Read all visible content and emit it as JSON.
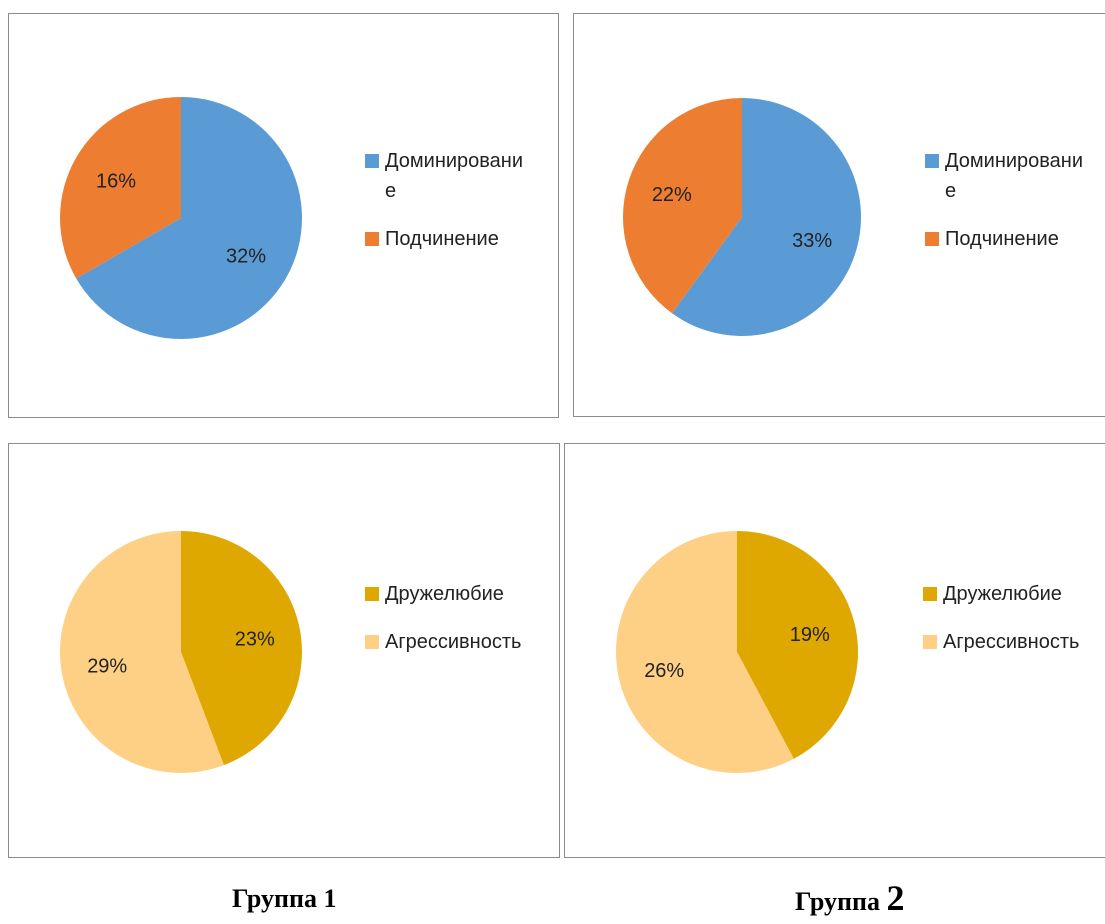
{
  "charts": [
    {
      "legend": [
        {
          "label": "Доминирование",
          "color": "#5b9bd5"
        },
        {
          "label": "Подчинение",
          "color": "#ed7d31"
        }
      ]
    },
    {
      "legend": [
        {
          "label": "Доминирование",
          "color": "#5b9bd5"
        },
        {
          "label": "Подчинение",
          "color": "#ed7d31"
        }
      ]
    },
    {
      "legend": [
        {
          "label": "Дружелюбие",
          "color": "#dfa800"
        },
        {
          "label": "Агрессивность",
          "color": "#fdd086"
        }
      ]
    },
    {
      "legend": [
        {
          "label": "Дружелюбие",
          "color": "#dfa800"
        },
        {
          "label": "Агрессивность",
          "color": "#fdd086"
        }
      ]
    }
  ],
  "chart_data": [
    {
      "type": "pie",
      "categories": [
        "Доминирование",
        "Подчинение"
      ],
      "values": [
        32,
        16
      ],
      "data_labels": [
        "32%",
        "16%"
      ],
      "colors": [
        "#5b9bd5",
        "#ed7d31"
      ],
      "legend_position": "right"
    },
    {
      "type": "pie",
      "categories": [
        "Доминирование",
        "Подчинение"
      ],
      "values": [
        33,
        22
      ],
      "data_labels": [
        "33%",
        "22%"
      ],
      "colors": [
        "#5b9bd5",
        "#ed7d31"
      ],
      "legend_position": "right"
    },
    {
      "type": "pie",
      "categories": [
        "Дружелюбие",
        "Агрессивность"
      ],
      "values": [
        23,
        29
      ],
      "data_labels": [
        "23%",
        "29%"
      ],
      "colors": [
        "#dfa800",
        "#fdd086"
      ],
      "legend_position": "right"
    },
    {
      "type": "pie",
      "categories": [
        "Дружелюбие",
        "Агрессивность"
      ],
      "values": [
        19,
        26
      ],
      "data_labels": [
        "19%",
        "26%"
      ],
      "colors": [
        "#dfa800",
        "#fdd086"
      ],
      "legend_position": "right"
    }
  ],
  "captions": {
    "group1": "Группа 1",
    "group2_prefix": "Группа ",
    "group2_number": "2"
  }
}
